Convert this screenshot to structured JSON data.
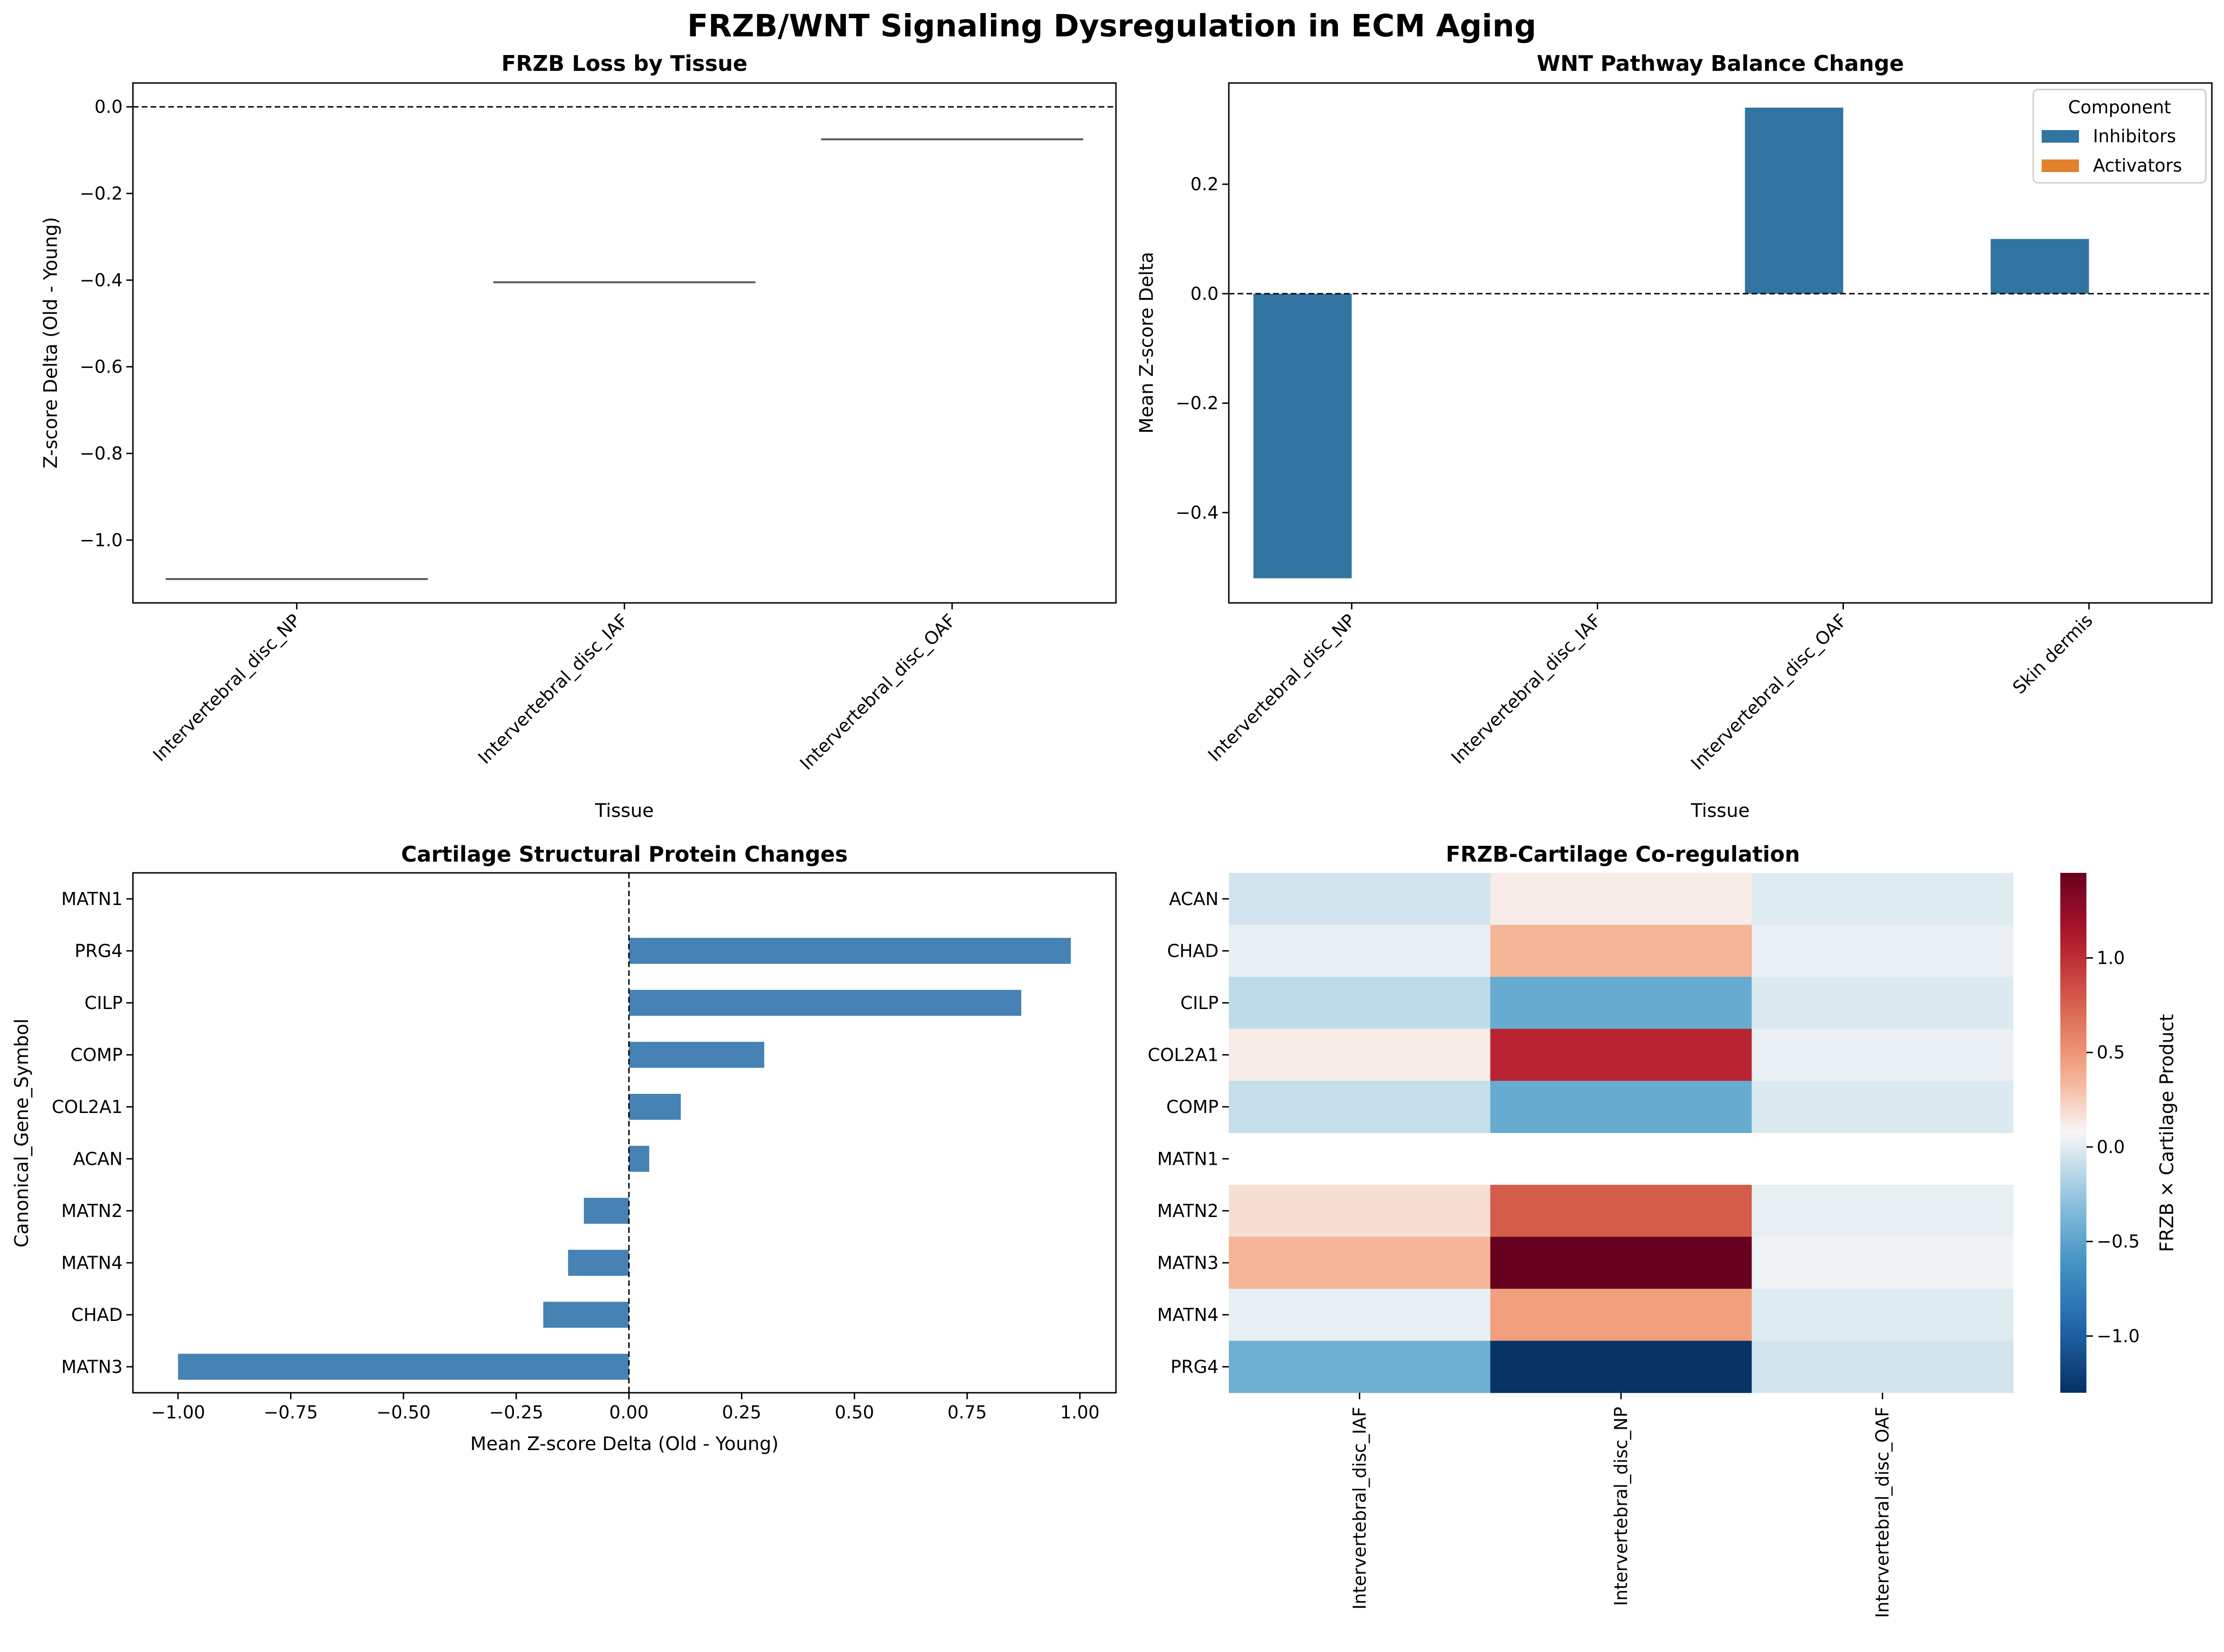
{
  "figure": {
    "suptitle": "FRZB/WNT Signaling Dysregulation in ECM Aging"
  },
  "chart_data": [
    {
      "type": "box",
      "title": "FRZB Loss by Tissue",
      "xlabel": "Tissue",
      "ylabel": "Z-score Delta (Old - Young)",
      "categories": [
        "Intervertebral_disc_NP",
        "Intervertebral_disc_IAF",
        "Intervertebral_disc_OAF"
      ],
      "values": [
        -1.09,
        -0.405,
        -0.075
      ],
      "ylim": [
        -1.145,
        0.055
      ],
      "yticks": [
        0.0,
        -0.2,
        -0.4,
        -0.6,
        -0.8,
        -1.0
      ],
      "ytick_labels": [
        "0.0",
        "−0.2",
        "−0.4",
        "−0.6",
        "−0.8",
        "−1.0"
      ],
      "reference_line": 0,
      "grid": false
    },
    {
      "type": "bar",
      "title": "WNT Pathway Balance Change",
      "xlabel": "Tissue",
      "ylabel": "Mean Z-score Delta",
      "categories": [
        "Intervertebral_disc_NP",
        "Intervertebral_disc_IAF",
        "Intervertebral_disc_OAF",
        "Skin dermis"
      ],
      "legend_title": "Component",
      "legend_position": "upper right",
      "series": [
        {
          "name": "Inhibitors",
          "color": "#3274a1",
          "values": [
            -0.52,
            0.0,
            0.34,
            0.1
          ]
        },
        {
          "name": "Activators",
          "color": "#e1812c",
          "values": [
            null,
            null,
            null,
            null
          ]
        }
      ],
      "ylim": [
        -0.565,
        0.385
      ],
      "yticks": [
        0.2,
        0.0,
        -0.2,
        -0.4
      ],
      "ytick_labels": [
        "0.2",
        "0.0",
        "−0.2",
        "−0.4"
      ],
      "reference_line": 0,
      "grid": false
    },
    {
      "type": "barh",
      "title": "Cartilage Structural Protein Changes",
      "xlabel": "Mean Z-score Delta (Old - Young)",
      "ylabel": "Canonical_Gene_Symbol",
      "categories": [
        "MATN1",
        "PRG4",
        "CILP",
        "COMP",
        "COL2A1",
        "ACAN",
        "MATN2",
        "MATN4",
        "CHAD",
        "MATN3"
      ],
      "values": [
        0.0,
        0.98,
        0.87,
        0.3,
        0.115,
        0.045,
        -0.1,
        -0.135,
        -0.19,
        -1.0
      ],
      "color": "#4682b4",
      "xlim": [
        -1.1,
        1.08
      ],
      "xticks": [
        -1.0,
        -0.75,
        -0.5,
        -0.25,
        0.0,
        0.25,
        0.5,
        0.75,
        1.0
      ],
      "xtick_labels": [
        "−1.00",
        "−0.75",
        "−0.50",
        "−0.25",
        "0.00",
        "0.25",
        "0.50",
        "0.75",
        "1.00"
      ],
      "reference_line": 0,
      "grid": false
    },
    {
      "type": "heatmap",
      "title": "FRZB-Cartilage Co-regulation",
      "rows": [
        "ACAN",
        "CHAD",
        "CILP",
        "COL2A1",
        "COMP",
        "MATN1",
        "MATN2",
        "MATN3",
        "MATN4",
        "PRG4"
      ],
      "columns": [
        "Intervertebral_disc_IAF",
        "Intervertebral_disc_NP",
        "Intervertebral_disc_OAF"
      ],
      "values": [
        [
          -0.05,
          0.12,
          -0.01
        ],
        [
          0.02,
          0.35,
          0.03
        ],
        [
          -0.12,
          -0.45,
          -0.02
        ],
        [
          0.12,
          1.05,
          0.03
        ],
        [
          -0.1,
          -0.45,
          -0.02
        ],
        [
          null,
          null,
          null
        ],
        [
          0.18,
          0.78,
          0.02
        ],
        [
          0.35,
          1.45,
          0.05
        ],
        [
          0.02,
          0.45,
          -0.01
        ],
        [
          -0.42,
          -1.28,
          -0.05
        ]
      ],
      "colormap": "RdBu_r",
      "vmin": -1.3,
      "vmax": 1.45,
      "colorbar_label": "FRZB × Cartilage Product",
      "colorbar_ticks": [
        1.0,
        0.5,
        0.0,
        -0.5,
        -1.0
      ],
      "colorbar_tick_labels": [
        "1.0",
        "0.5",
        "0.0",
        "−0.5",
        "−1.0"
      ]
    }
  ]
}
